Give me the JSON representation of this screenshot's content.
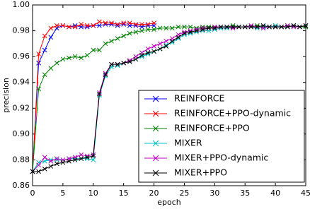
{
  "chart_data": {
    "type": "line",
    "x_label": "epoch",
    "y_label": "precision",
    "x": [
      0,
      1,
      2,
      3,
      4,
      5,
      6,
      7,
      8,
      9,
      10,
      11,
      12,
      13,
      14,
      15,
      16,
      17,
      18,
      19,
      20,
      21,
      22,
      23,
      24,
      25,
      26,
      27,
      28,
      29,
      30,
      31,
      32,
      33,
      34,
      35,
      36,
      37,
      38,
      39,
      40,
      41,
      42,
      43,
      44,
      45
    ],
    "xlim": [
      0,
      45
    ],
    "xticks": [
      0,
      5,
      10,
      15,
      20,
      25,
      30,
      35,
      40,
      45
    ],
    "ylim": [
      0.86,
      1.0
    ],
    "yticks": [
      0.86,
      0.88,
      {
        "value": 0.9,
        "label": "0.90"
      },
      0.92,
      0.94,
      0.96,
      0.98,
      {
        "value": 1.0,
        "label": "1.00"
      }
    ],
    "legend": "lower right",
    "series": [
      {
        "name": "REINFORCE",
        "color": "#0000ff",
        "values": [
          0.871,
          0.955,
          0.965,
          0.975,
          0.982,
          0.984,
          0.983,
          0.984,
          0.983,
          0.983,
          0.984,
          0.984,
          0.985,
          0.985,
          0.984,
          0.985,
          0.984,
          0.984,
          0.983,
          0.984,
          0.984,
          null,
          null,
          null,
          null,
          null,
          null,
          null,
          null,
          null,
          null,
          null,
          null,
          null,
          null,
          null,
          null,
          null,
          null,
          null,
          null,
          null,
          null,
          null,
          null,
          null
        ]
      },
      {
        "name": "REINFORCE+PPO-dynamic",
        "color": "#ff0000",
        "values": [
          0.871,
          0.962,
          0.976,
          0.982,
          0.984,
          0.984,
          0.983,
          0.983,
          0.985,
          0.984,
          0.984,
          0.987,
          0.986,
          0.986,
          0.985,
          0.986,
          0.986,
          0.985,
          0.985,
          0.985,
          0.986,
          null,
          null,
          null,
          null,
          null,
          null,
          null,
          null,
          null,
          null,
          null,
          null,
          null,
          null,
          null,
          null,
          null,
          null,
          null,
          null,
          null,
          null,
          null,
          null,
          null
        ]
      },
      {
        "name": "REINFORCE+PPO",
        "color": "#008000",
        "values": [
          0.871,
          0.935,
          0.946,
          0.951,
          0.955,
          0.958,
          0.959,
          0.96,
          0.959,
          0.961,
          0.965,
          0.965,
          0.97,
          0.972,
          0.974,
          0.976,
          0.978,
          0.979,
          0.98,
          0.981,
          0.981,
          0.982,
          0.982,
          0.982,
          0.983,
          0.983,
          0.983,
          0.982,
          0.983,
          0.983,
          0.983,
          0.983,
          0.983,
          0.984,
          0.983,
          0.983,
          0.983,
          0.984,
          0.983,
          0.983,
          0.983,
          0.983,
          0.983,
          0.984,
          0.983,
          0.983
        ]
      },
      {
        "name": "MIXER",
        "color": "#00bfbf",
        "values": [
          0.871,
          0.878,
          0.879,
          0.88,
          0.88,
          0.88,
          0.881,
          0.881,
          0.881,
          0.881,
          0.88,
          0.93,
          0.945,
          0.952,
          0.953,
          0.955,
          0.956,
          0.958,
          0.96,
          0.962,
          0.964,
          0.966,
          0.969,
          0.971,
          0.974,
          0.977,
          0.978,
          0.979,
          0.98,
          0.98,
          0.981,
          0.982,
          0.982,
          0.983,
          0.983,
          0.983,
          0.983,
          0.982,
          0.983,
          0.983,
          0.984,
          0.983,
          0.983,
          0.984,
          0.983,
          0.984
        ]
      },
      {
        "name": "MIXER+PPO-dynamic",
        "color": "#bf00bf",
        "values": [
          0.871,
          0.876,
          0.882,
          0.879,
          0.881,
          0.88,
          0.881,
          0.882,
          0.884,
          0.883,
          0.884,
          0.932,
          0.947,
          0.954,
          0.954,
          0.955,
          0.957,
          0.96,
          0.963,
          0.966,
          0.968,
          0.97,
          0.972,
          0.974,
          0.977,
          0.979,
          0.98,
          0.981,
          0.982,
          0.982,
          0.983,
          0.983,
          0.983,
          0.982,
          0.983,
          0.983,
          0.984,
          0.983,
          0.982,
          0.983,
          0.983,
          0.983,
          0.984,
          0.983,
          0.983,
          0.984
        ]
      },
      {
        "name": "MIXER+PPO",
        "color": "#000000",
        "values": [
          0.871,
          0.871,
          0.873,
          0.875,
          0.877,
          0.878,
          0.879,
          0.88,
          0.881,
          0.882,
          0.883,
          0.931,
          0.946,
          0.954,
          0.954,
          0.955,
          0.956,
          0.958,
          0.961,
          0.963,
          0.964,
          0.966,
          0.968,
          0.972,
          0.975,
          0.978,
          0.979,
          0.98,
          0.981,
          0.982,
          0.982,
          0.983,
          0.983,
          0.983,
          0.983,
          0.983,
          0.983,
          0.983,
          0.984,
          0.983,
          0.983,
          0.983,
          0.983,
          0.984,
          0.983,
          0.984
        ]
      }
    ]
  }
}
